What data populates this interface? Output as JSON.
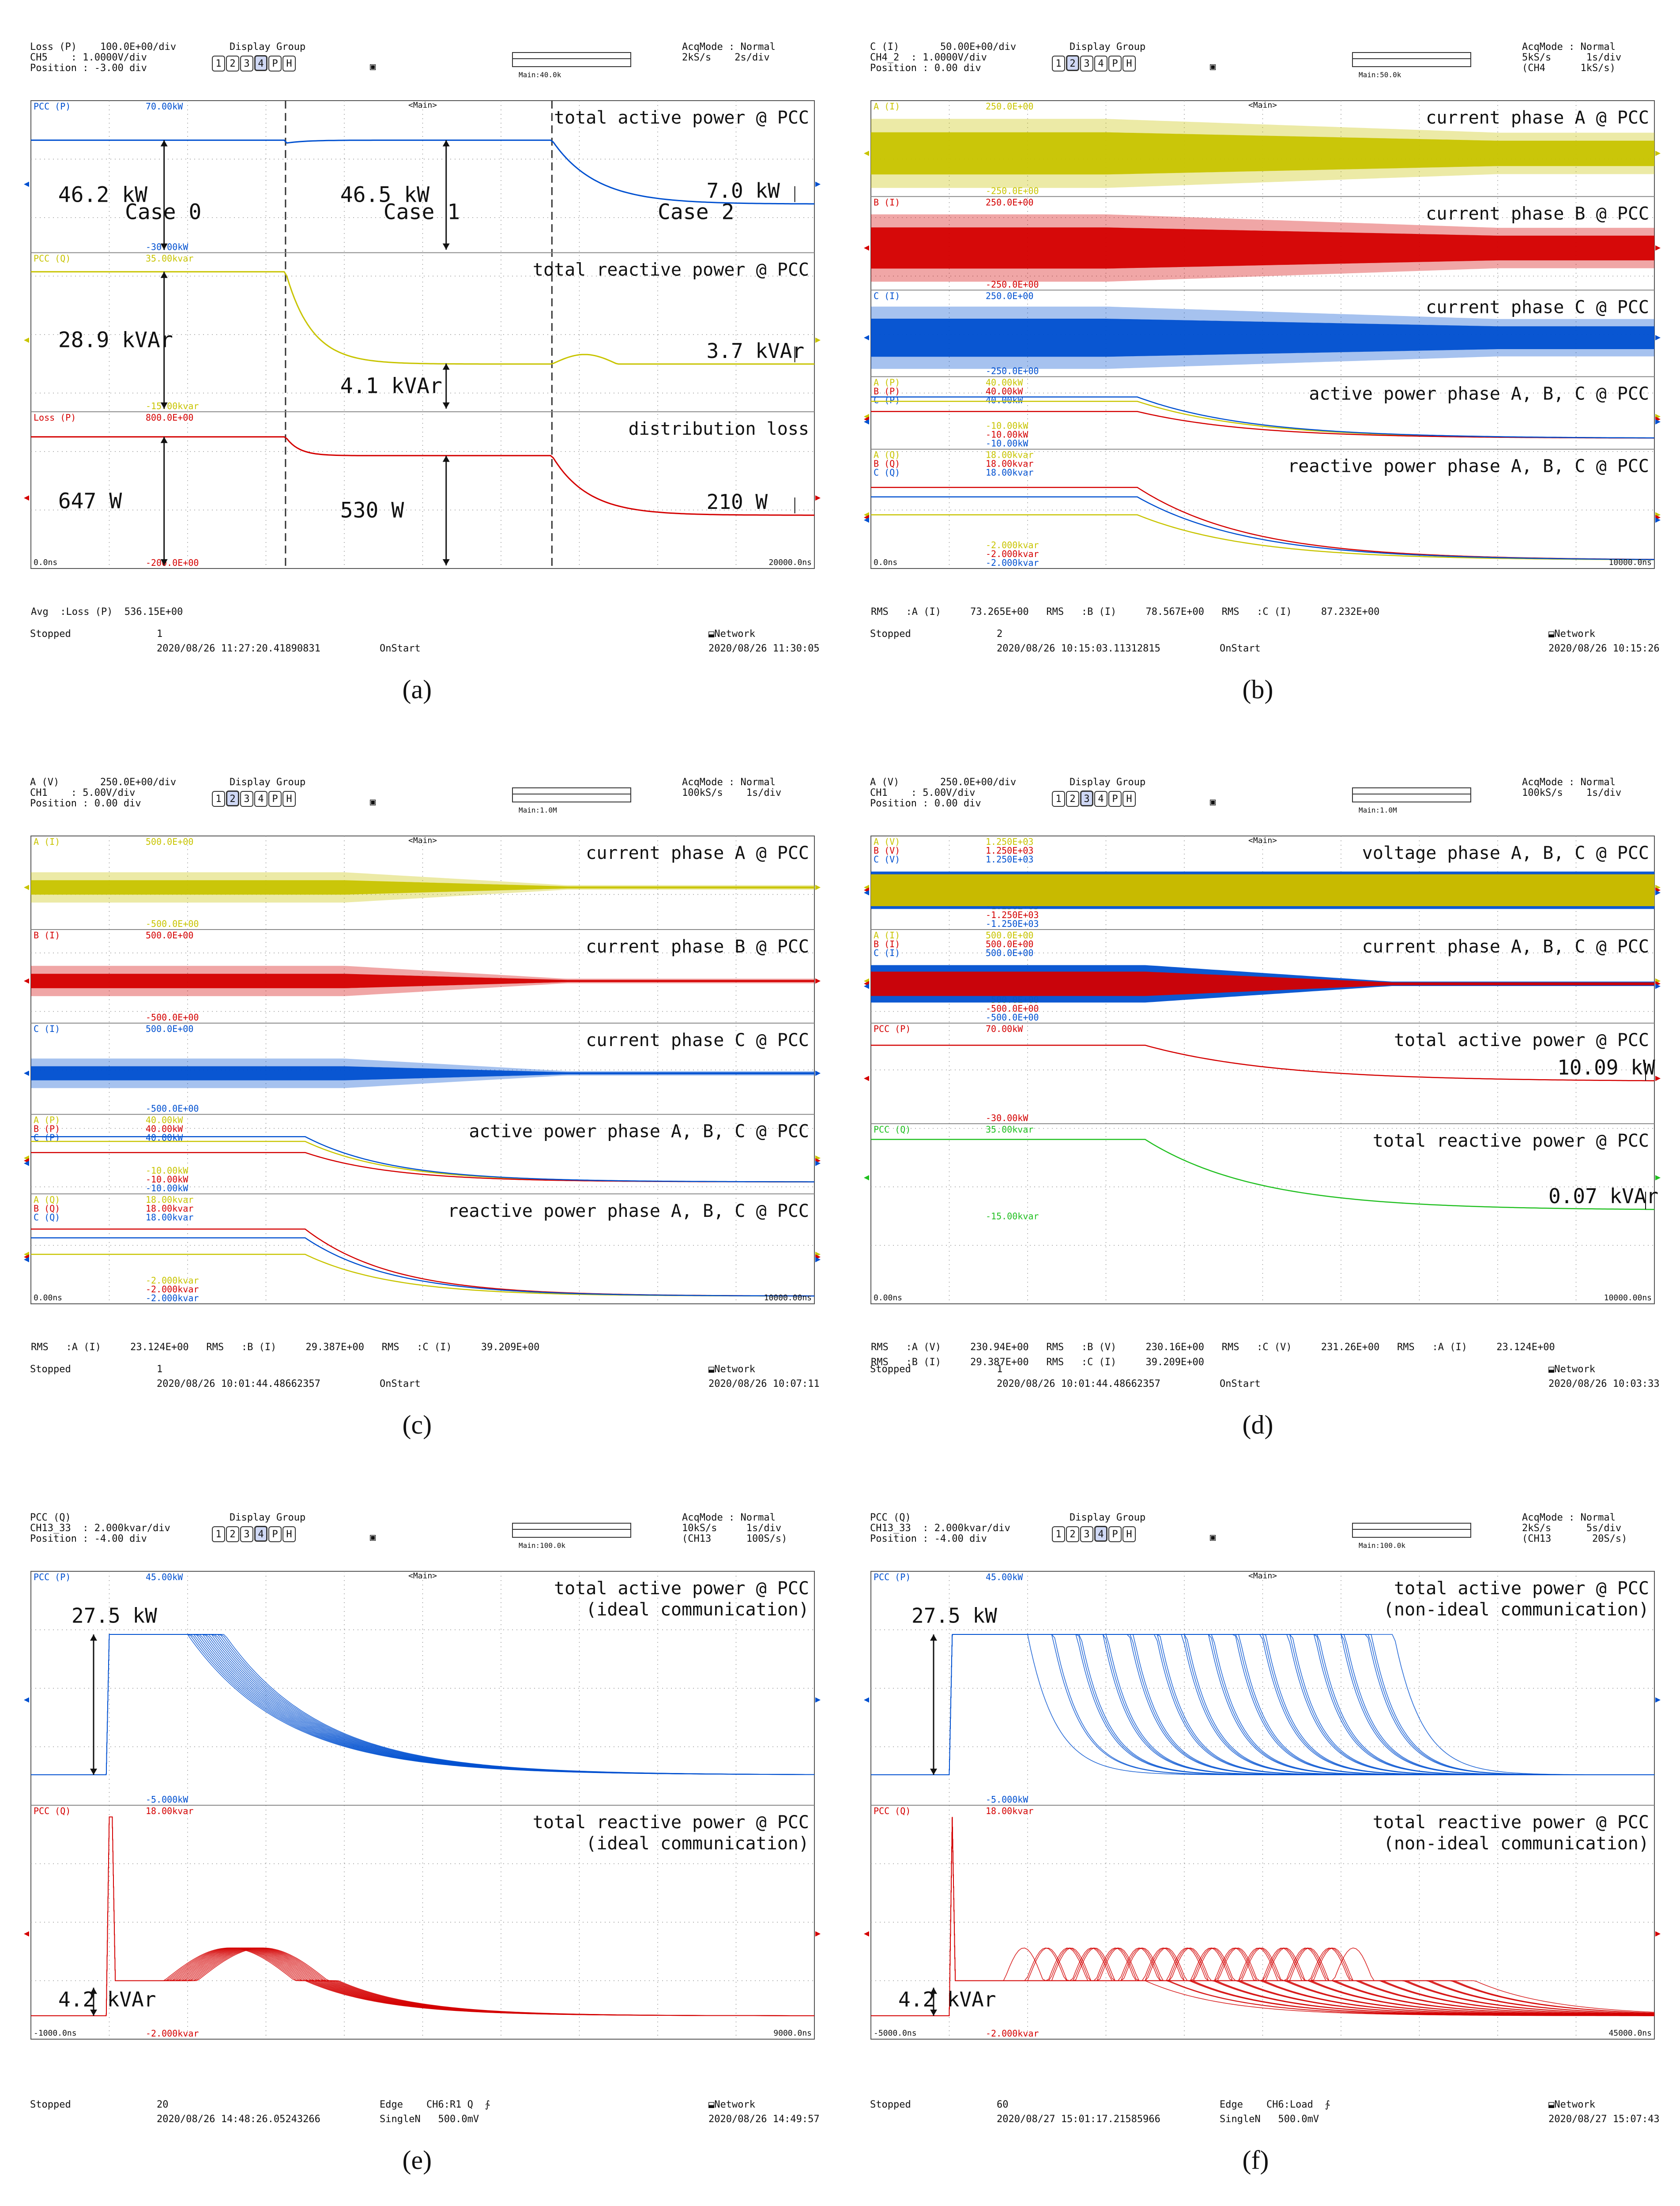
{
  "colors": {
    "yellow": "#c8c400",
    "red": "#d40000",
    "blue": "#0050d0",
    "green": "#1fbf1f",
    "grid": "#9a9a9a",
    "text": "#111111"
  },
  "display_group": {
    "label": "Display Group",
    "buttons": [
      "1",
      "2",
      "3",
      "4",
      "P",
      "H"
    ]
  },
  "network_label": "Network",
  "panels": [
    {
      "id": "a",
      "caption": "(a)",
      "header": {
        "l1": "Loss (P)    100.0E+00/div",
        "l2": "CH5    : 1.0000V/div",
        "l3": "Position : -3.00 div",
        "r1": "AcqMode : Normal",
        "r2": "2kS/s    2s/div",
        "r3": "",
        "main": "Main:40.0k",
        "dg_selected": [
          4
        ]
      },
      "center": "<Main>",
      "time_left": "0.0ns",
      "time_right": "20000.0ns",
      "status": [
        "Avg  :Loss (P)  536.15E+00"
      ],
      "stopped": "Stopped",
      "count": "1",
      "datetime": "2020/08/26 11:27:20.41890831",
      "mode": "OnStart",
      "end_time": "2020/08/26 11:30:05",
      "trig_info": [],
      "divider_texts": [
        "Case 0",
        "Case 1",
        "Case 2"
      ],
      "strips": [
        {
          "label": "total active power @ PCC",
          "channels": [
            {
              "name": "PCC (P)",
              "top": "70.00kW",
              "bot": "-30.00kW",
              "color": "blue"
            }
          ],
          "annotations": [
            {
              "text": "46.2 kW"
            },
            {
              "text": "46.5 kW"
            },
            {
              "text": "7.0 kW"
            }
          ]
        },
        {
          "label": "total reactive power @ PCC",
          "channels": [
            {
              "name": "PCC (Q)",
              "top": "35.00kvar",
              "bot": "-15.00kvar",
              "color": "yellow"
            }
          ],
          "annotations": [
            {
              "text": "28.9 kVAr"
            },
            {
              "text": "4.1 kVAr"
            },
            {
              "text": "3.7 kVAr"
            }
          ]
        },
        {
          "label": "distribution loss",
          "channels": [
            {
              "name": "Loss (P)",
              "top": "800.0E+00",
              "bot": "-200.0E+00",
              "color": "red"
            }
          ],
          "annotations": [
            {
              "text": "647 W"
            },
            {
              "text": "530 W"
            },
            {
              "text": "210 W"
            }
          ]
        }
      ]
    },
    {
      "id": "b",
      "caption": "(b)",
      "header": {
        "l1": "C (I)       50.00E+00/div",
        "l2": "CH4_2  : 1.0000V/div",
        "l3": "Position : 0.00 div",
        "r1": "AcqMode : Normal",
        "r2": "5kS/s      1s/div",
        "r3": "(CH4      1kS/s)",
        "main": "Main:50.0k",
        "dg_selected": [
          2
        ]
      },
      "center": "<Main>",
      "time_left": "0.0ns",
      "time_right": "10000.0ns",
      "status": [
        "RMS   :A (I)     73.265E+00   RMS   :B (I)     78.567E+00   RMS   :C (I)     87.232E+00"
      ],
      "stopped": "Stopped",
      "count": "2",
      "datetime": "2020/08/26 10:15:03.11312815",
      "mode": "OnStart",
      "end_time": "2020/08/26 10:15:26",
      "trig_info": [],
      "strips": [
        {
          "label": "current phase A @ PCC",
          "channels": [
            {
              "name": "A (I)",
              "top": "250.0E+00",
              "bot": "-250.0E+00",
              "color": "yellow"
            }
          ]
        },
        {
          "label": "current phase B @ PCC",
          "channels": [
            {
              "name": "B (I)",
              "top": "250.0E+00",
              "bot": "-250.0E+00",
              "color": "red"
            }
          ]
        },
        {
          "label": "current phase C @ PCC",
          "channels": [
            {
              "name": "C (I)",
              "top": "250.0E+00",
              "bot": "-250.0E+00",
              "color": "blue"
            }
          ]
        },
        {
          "label": "active power phase A, B, C @ PCC",
          "channels": [
            {
              "name": "A (P)",
              "top": "40.00kW",
              "bot": "-10.00kW",
              "color": "yellow"
            },
            {
              "name": "B (P)",
              "top": "40.00kW",
              "bot": "-10.00kW",
              "color": "red"
            },
            {
              "name": "C (P)",
              "top": "40.00kW",
              "bot": "-10.00kW",
              "color": "blue"
            }
          ]
        },
        {
          "label": "reactive power phase A, B, C @ PCC",
          "channels": [
            {
              "name": "A (Q)",
              "top": "18.00kvar",
              "bot": "-2.000kvar",
              "color": "yellow"
            },
            {
              "name": "B (Q)",
              "top": "18.00kvar",
              "bot": "-2.000kvar",
              "color": "red"
            },
            {
              "name": "C (Q)",
              "top": "18.00kvar",
              "bot": "-2.000kvar",
              "color": "blue"
            }
          ]
        }
      ]
    },
    {
      "id": "c",
      "caption": "(c)",
      "header": {
        "l1": "A (V)       250.0E+00/div",
        "l2": "CH1    : 5.00V/div",
        "l3": "Position : 0.00 div",
        "r1": "AcqMode : Normal",
        "r2": "100kS/s    1s/div",
        "r3": "",
        "main": "Main:1.0M",
        "dg_selected": [
          2
        ]
      },
      "center": "<Main>",
      "time_left": "0.00ns",
      "time_right": "10000.00ns",
      "status": [
        "RMS   :A (I)     23.124E+00   RMS   :B (I)     29.387E+00   RMS   :C (I)     39.209E+00"
      ],
      "stopped": "Stopped",
      "count": "1",
      "datetime": "2020/08/26 10:01:44.48662357",
      "mode": "OnStart",
      "end_time": "2020/08/26 10:07:11",
      "trig_info": [],
      "strips": [
        {
          "label": "current phase A @ PCC",
          "channels": [
            {
              "name": "A (I)",
              "top": "500.0E+00",
              "bot": "-500.0E+00",
              "color": "yellow"
            }
          ]
        },
        {
          "label": "current phase B @ PCC",
          "channels": [
            {
              "name": "B (I)",
              "top": "500.0E+00",
              "bot": "-500.0E+00",
              "color": "red"
            }
          ]
        },
        {
          "label": "current phase C @ PCC",
          "channels": [
            {
              "name": "C (I)",
              "top": "500.0E+00",
              "bot": "-500.0E+00",
              "color": "blue"
            }
          ]
        },
        {
          "label": "active power phase A, B, C @ PCC",
          "channels": [
            {
              "name": "A (P)",
              "top": "40.00kW",
              "bot": "-10.00kW",
              "color": "yellow"
            },
            {
              "name": "B (P)",
              "top": "40.00kW",
              "bot": "-10.00kW",
              "color": "red"
            },
            {
              "name": "C (P)",
              "top": "40.00kW",
              "bot": "-10.00kW",
              "color": "blue"
            }
          ]
        },
        {
          "label": "reactive power phase A, B, C @ PCC",
          "channels": [
            {
              "name": "A (Q)",
              "top": "18.00kvar",
              "bot": "-2.000kvar",
              "color": "yellow"
            },
            {
              "name": "B (Q)",
              "top": "18.00kvar",
              "bot": "-2.000kvar",
              "color": "red"
            },
            {
              "name": "C (Q)",
              "top": "18.00kvar",
              "bot": "-2.000kvar",
              "color": "blue"
            }
          ]
        }
      ]
    },
    {
      "id": "d",
      "caption": "(d)",
      "header": {
        "l1": "A (V)       250.0E+00/div",
        "l2": "CH1    : 5.00V/div",
        "l3": "Position : 0.00 div",
        "r1": "AcqMode : Normal",
        "r2": "100kS/s    1s/div",
        "r3": "",
        "main": "Main:1.0M",
        "dg_selected": [
          3
        ]
      },
      "center": "<Main>",
      "time_left": "0.00ns",
      "time_right": "10000.00ns",
      "status": [
        "RMS   :A (V)     230.94E+00   RMS   :B (V)     230.16E+00   RMS   :C (V)     231.26E+00   RMS   :A (I)     23.124E+00",
        "RMS   :B (I)     29.387E+00   RMS   :C (I)     39.209E+00"
      ],
      "stopped": "Stopped",
      "count": "1",
      "datetime": "2020/08/26 10:01:44.48662357",
      "mode": "OnStart",
      "end_time": "2020/08/26 10:03:33",
      "trig_info": [],
      "strips": [
        {
          "label": "voltage phase A, B, C @ PCC",
          "channels": [
            {
              "name": "A (V)",
              "top": "1.250E+03",
              "bot": "-1.250E+03",
              "color": "yellow"
            },
            {
              "name": "B (V)",
              "top": "1.250E+03",
              "bot": "-1.250E+03",
              "color": "red"
            },
            {
              "name": "C (V)",
              "top": "1.250E+03",
              "bot": "-1.250E+03",
              "color": "blue"
            }
          ]
        },
        {
          "label": "current phase A, B, C @ PCC",
          "channels": [
            {
              "name": "A (I)",
              "top": "500.0E+00",
              "bot": "-500.0E+00",
              "color": "yellow"
            },
            {
              "name": "B (I)",
              "top": "500.0E+00",
              "bot": "-500.0E+00",
              "color": "red"
            },
            {
              "name": "C (I)",
              "top": "500.0E+00",
              "bot": "-500.0E+00",
              "color": "blue"
            }
          ]
        },
        {
          "label": "total active power @ PCC",
          "channels": [
            {
              "name": "PCC (P)",
              "top": "70.00kW",
              "bot": "-30.00kW",
              "color": "red"
            }
          ],
          "annotations": [
            {
              "text": "10.09 kW"
            }
          ]
        },
        {
          "label": "total reactive power @ PCC",
          "channels": [
            {
              "name": "PCC (Q)",
              "top": "35.00kvar",
              "bot": "-15.00kvar",
              "color": "green"
            }
          ],
          "annotations": [
            {
              "text": "0.07 kVAr"
            }
          ]
        }
      ]
    },
    {
      "id": "e",
      "caption": "(e)",
      "header": {
        "l1": "PCC (Q)",
        "l2": "CH13_33  : 2.000kvar/div",
        "l3": "Position : -4.00 div",
        "r1": "AcqMode : Normal",
        "r2": "10kS/s     1s/div",
        "r3": "(CH13      100S/s)",
        "main": "Main:100.0k",
        "dg_selected": [
          4
        ]
      },
      "center": "<Main>",
      "time_left": "-1000.0ns",
      "time_right": "9000.0ns",
      "status": [],
      "stopped": "Stopped",
      "count": "20",
      "datetime": "2020/08/26 14:48:26.05243266",
      "mode": "",
      "trig_info": [
        "Edge    CH6:R1 Q  ∱",
        "SingleN   500.0mV"
      ],
      "end_time": "2020/08/26 14:49:57",
      "strips": [
        {
          "label": "total active power @ PCC",
          "label2": "(ideal communication)",
          "channels": [
            {
              "name": "PCC (P)",
              "top": "45.00kW",
              "bot": "-5.000kW",
              "color": "blue"
            }
          ],
          "annotations": [
            {
              "text": "27.5 kW"
            }
          ]
        },
        {
          "label": "total reactive power @ PCC",
          "label2": "(ideal communication)",
          "channels": [
            {
              "name": "PCC (Q)",
              "top": "18.00kvar",
              "bot": "-2.000kvar",
              "color": "red"
            }
          ],
          "annotations": [
            {
              "text": "4.2 kVAr"
            }
          ]
        }
      ]
    },
    {
      "id": "f",
      "caption": "(f)",
      "header": {
        "l1": "PCC (Q)",
        "l2": "CH13_33  : 2.000kvar/div",
        "l3": "Position : -4.00 div",
        "r1": "AcqMode : Normal",
        "r2": "2kS/s      5s/div",
        "r3": "(CH13       20S/s)",
        "main": "Main:100.0k",
        "dg_selected": [
          4
        ]
      },
      "center": "<Main>",
      "time_left": "-5000.0ns",
      "time_right": "45000.0ns",
      "status": [],
      "stopped": "Stopped",
      "count": "60",
      "datetime": "2020/08/27 15:01:17.21585966",
      "mode": "",
      "trig_info": [
        "Edge    CH6:Load  ∱",
        "SingleN   500.0mV"
      ],
      "end_time": "2020/08/27 15:07:43",
      "strips": [
        {
          "label": "total active power @ PCC",
          "label2": "(non-ideal communication)",
          "channels": [
            {
              "name": "PCC (P)",
              "top": "45.00kW",
              "bot": "-5.000kW",
              "color": "blue"
            }
          ],
          "annotations": [
            {
              "text": "27.5 kW"
            }
          ]
        },
        {
          "label": "total reactive power @ PCC",
          "label2": "(non-ideal communication)",
          "channels": [
            {
              "name": "PCC (Q)",
              "top": "18.00kvar",
              "bot": "-2.000kvar",
              "color": "red"
            }
          ],
          "annotations": [
            {
              "text": "4.2 kVAr"
            }
          ]
        }
      ]
    }
  ]
}
